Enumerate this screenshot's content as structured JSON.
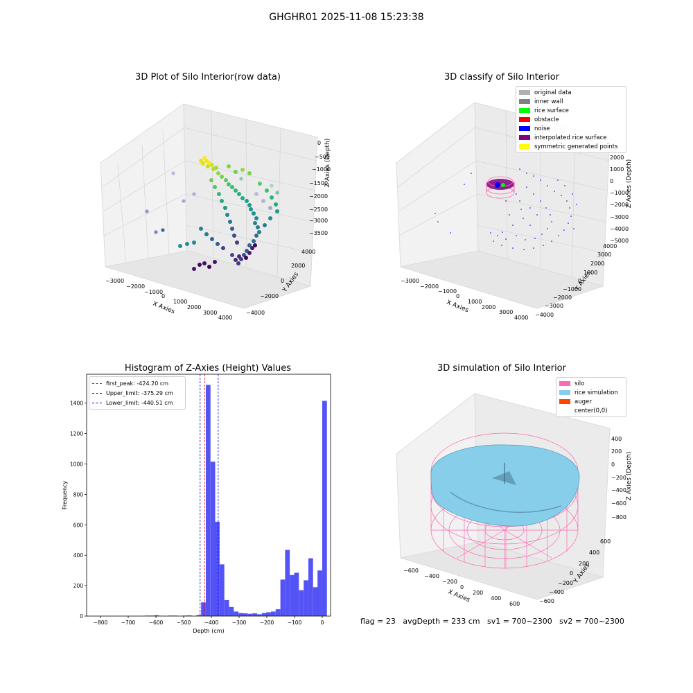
{
  "suptitle": "GHGHR01 2025-11-08 15:23:38",
  "footer": "flag = 23   avgDepth = 233 cm   sv1 = 700~2300   sv2 = 700~2300",
  "colors": {
    "silo": "#ff69b4",
    "rice_simulation": "#87ceeb",
    "auger": "#ff4500",
    "histogram_bar": "#4040f5",
    "first_peak_line": "#ff0000",
    "limit_lines": "#0000ff",
    "noise": "#0000ff",
    "interpolated": "#800080",
    "rice_surface": "#00ff00"
  },
  "panels": {
    "raw": {
      "title": "3D Plot of Silo Interior(row data)",
      "xlabel": "X Axies",
      "ylabel": "Y Axies",
      "zlabel": "Z Axies (Depth)",
      "xticks": [
        "−3000",
        "−2000",
        "−1000",
        "0",
        "1000",
        "2000",
        "3000",
        "4000"
      ],
      "yticks": [
        "4000",
        "2000",
        "0",
        "−2000",
        "−4000"
      ],
      "zticks": [
        "0",
        "−500",
        "−1000",
        "−1500",
        "−2000",
        "−2500",
        "−3000",
        "−3500"
      ]
    },
    "classify": {
      "title": "3D classify of Silo Interior",
      "xlabel": "X Axies",
      "ylabel": "Y Axies",
      "zlabel": "Z Axies (Depth)",
      "xticks": [
        "−3000",
        "−2000",
        "−1000",
        "0",
        "1000",
        "2000",
        "3000",
        "4000"
      ],
      "yticks": [
        "4000",
        "3000",
        "2000",
        "1000",
        "0",
        "−1000",
        "−2000",
        "−3000",
        "−4000"
      ],
      "zticks": [
        "2000",
        "1000",
        "0",
        "−1000",
        "−2000",
        "−3000",
        "−4000",
        "−5000"
      ],
      "legend": [
        {
          "label": "original data",
          "color": "#b0b0b0"
        },
        {
          "label": "inner wall",
          "color": "#808080"
        },
        {
          "label": "rice surface",
          "color": "#00ff00"
        },
        {
          "label": "obstacle",
          "color": "#ff0000"
        },
        {
          "label": "noise",
          "color": "#0000ff"
        },
        {
          "label": "interpolated rice surface",
          "color": "#800080"
        },
        {
          "label": "symmetric generated points",
          "color": "#ffff00"
        }
      ]
    },
    "simulation": {
      "title": "3D simulation of Silo Interior",
      "xlabel": "X Axies",
      "ylabel": "Y Axies",
      "zlabel": "Z Axies (Depth)",
      "xticks": [
        "−600",
        "−400",
        "−200",
        "0",
        "200",
        "400",
        "600"
      ],
      "yticks": [
        "600",
        "400",
        "200",
        "0",
        "−200",
        "−400",
        "−600"
      ],
      "zticks": [
        "400",
        "200",
        "0",
        "−200",
        "−400",
        "−600",
        "−800"
      ],
      "legend": [
        {
          "label": "silo",
          "color": "#ff69b4"
        },
        {
          "label": "rice simulation",
          "color": "#87ceeb"
        },
        {
          "label": "auger",
          "color": "#ff4500"
        },
        {
          "label": "center(0,0)",
          "color": ""
        }
      ]
    }
  },
  "chart_data": {
    "type": "bar",
    "title": "Histogram of Z-Axies (Height) Values",
    "xlabel": "Depth (cm)",
    "ylabel": "Frequency",
    "xlim": [
      -850,
      30
    ],
    "ylim": [
      0,
      1590
    ],
    "xticks": [
      -800,
      -700,
      -600,
      -500,
      -400,
      -300,
      -200,
      -100,
      0
    ],
    "yticks": [
      0,
      200,
      400,
      600,
      800,
      1000,
      1200,
      1400
    ],
    "grid": false,
    "legend_position": "top-left",
    "bin_width": 16.8,
    "bins": [
      {
        "x0": -640,
        "value": 3
      },
      {
        "x0": -623,
        "value": 3
      },
      {
        "x0": -606,
        "value": 5
      },
      {
        "x0": -589,
        "value": 2
      },
      {
        "x0": -555,
        "value": 3
      },
      {
        "x0": -538,
        "value": 3
      },
      {
        "x0": -505,
        "value": 3
      },
      {
        "x0": -488,
        "value": 4
      },
      {
        "x0": -454,
        "value": 6
      },
      {
        "x0": -437,
        "value": 90
      },
      {
        "x0": -420,
        "value": 1520
      },
      {
        "x0": -403,
        "value": 1015
      },
      {
        "x0": -387,
        "value": 620
      },
      {
        "x0": -370,
        "value": 340
      },
      {
        "x0": -353,
        "value": 105
      },
      {
        "x0": -336,
        "value": 60
      },
      {
        "x0": -319,
        "value": 30
      },
      {
        "x0": -302,
        "value": 20
      },
      {
        "x0": -286,
        "value": 18
      },
      {
        "x0": -269,
        "value": 15
      },
      {
        "x0": -252,
        "value": 18
      },
      {
        "x0": -235,
        "value": 12
      },
      {
        "x0": -218,
        "value": 20
      },
      {
        "x0": -202,
        "value": 25
      },
      {
        "x0": -185,
        "value": 30
      },
      {
        "x0": -168,
        "value": 45
      },
      {
        "x0": -151,
        "value": 240
      },
      {
        "x0": -134,
        "value": 435
      },
      {
        "x0": -117,
        "value": 270
      },
      {
        "x0": -101,
        "value": 285
      },
      {
        "x0": -84,
        "value": 170
      },
      {
        "x0": -67,
        "value": 235
      },
      {
        "x0": -50,
        "value": 380
      },
      {
        "x0": -33,
        "value": 190
      },
      {
        "x0": -17,
        "value": 300
      },
      {
        "x0": 0,
        "value": 1415
      }
    ],
    "reference_lines": [
      {
        "label": "first_peak: -424.20 cm",
        "x": -424.2,
        "color": "#ff0000"
      },
      {
        "label": "Upper_limit: -375.29 cm",
        "x": -375.29,
        "color": "#0000ff"
      },
      {
        "label": "Lower_limit: -440.51 cm",
        "x": -440.51,
        "color": "#0000ff"
      }
    ]
  }
}
